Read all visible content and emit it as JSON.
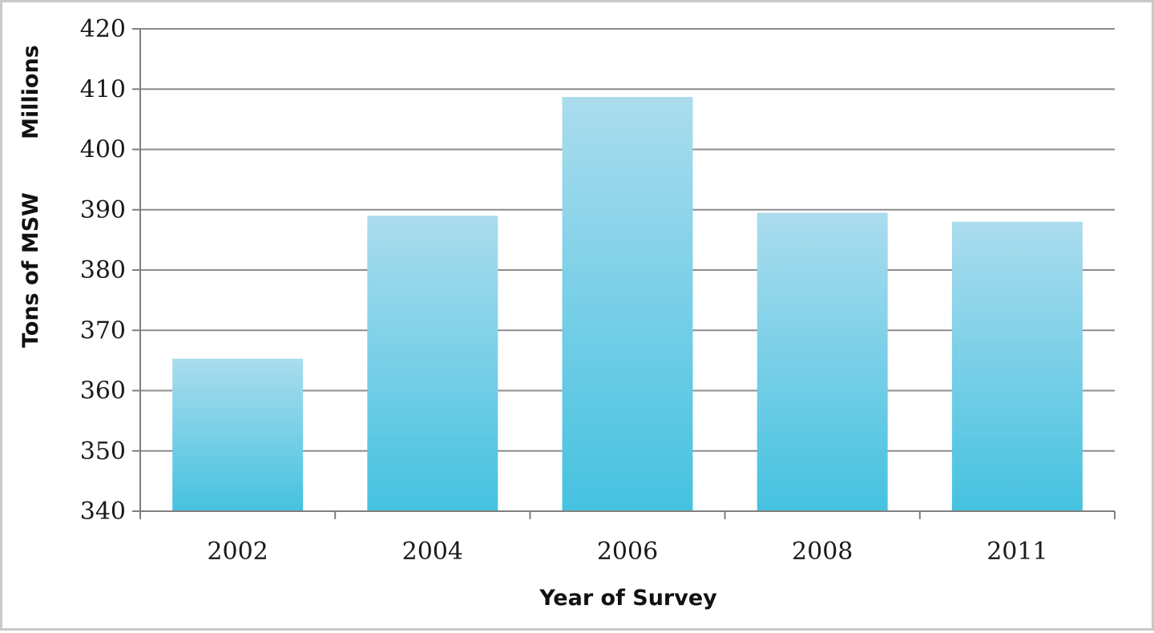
{
  "chart_data": {
    "type": "bar",
    "title": "",
    "xlabel": "Year of Survey",
    "ylabel": "Tons of MSW",
    "ylabel_units": "Millions",
    "categories": [
      "2002",
      "2004",
      "2006",
      "2008",
      "2011"
    ],
    "values": [
      365.3,
      389.0,
      408.7,
      389.5,
      388.0
    ],
    "ylim": [
      340,
      420
    ],
    "yticks": [
      340,
      350,
      360,
      370,
      380,
      390,
      400,
      410,
      420
    ],
    "grid": true,
    "legend": "none",
    "colors": {
      "bar_top": "#abdcee",
      "bar_bottom": "#45c2e0",
      "grid": "#8c8c8c",
      "axis": "#7f7f7f",
      "frame": "#c9c9c9"
    }
  }
}
